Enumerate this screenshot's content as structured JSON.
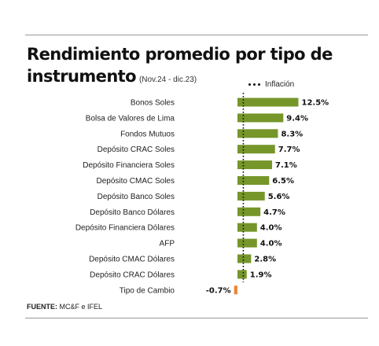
{
  "header": {
    "title_line1": "Rendimiento promedio por tipo de",
    "title_line2": "instrumento",
    "subtitle": "(Nov.24 - dic.23)"
  },
  "legend": {
    "inflation_label": "Inflación"
  },
  "footer": {
    "source_label": "FUENTE:",
    "source_text": "MC&F e IFEL"
  },
  "colors": {
    "positive": "#76962a",
    "negative": "#e8893a",
    "inflation_line": "#111111"
  },
  "chart_data": {
    "type": "bar",
    "orientation": "horizontal",
    "categories": [
      "Bonos Soles",
      "Bolsa de Valores de Lima",
      "Fondos Mutuos",
      "Depósito CRAC Soles",
      "Depósito Financiera Soles",
      "Depósito CMAC Soles",
      "Depósito Banco Soles",
      "Depósito Banco Dólares",
      "Depósito Financiera Dólares",
      "AFP",
      "Depósito CMAC Dólares",
      "Depósito CRAC Dólares",
      "Tipo de Cambio"
    ],
    "values": [
      12.5,
      9.4,
      8.3,
      7.7,
      7.1,
      6.5,
      5.6,
      4.7,
      4.0,
      4.0,
      2.8,
      1.9,
      -0.7
    ],
    "value_labels": [
      "12.5%",
      "9.4%",
      "8.3%",
      "7.7%",
      "7.1%",
      "6.5%",
      "5.6%",
      "4.7%",
      "4.0%",
      "4.0%",
      "2.8%",
      "1.9%",
      "-0.7%"
    ],
    "inflation_marker_value": 1.2,
    "xlim": [
      -0.7,
      12.5
    ],
    "grid": false,
    "legend_position": "top-right"
  }
}
